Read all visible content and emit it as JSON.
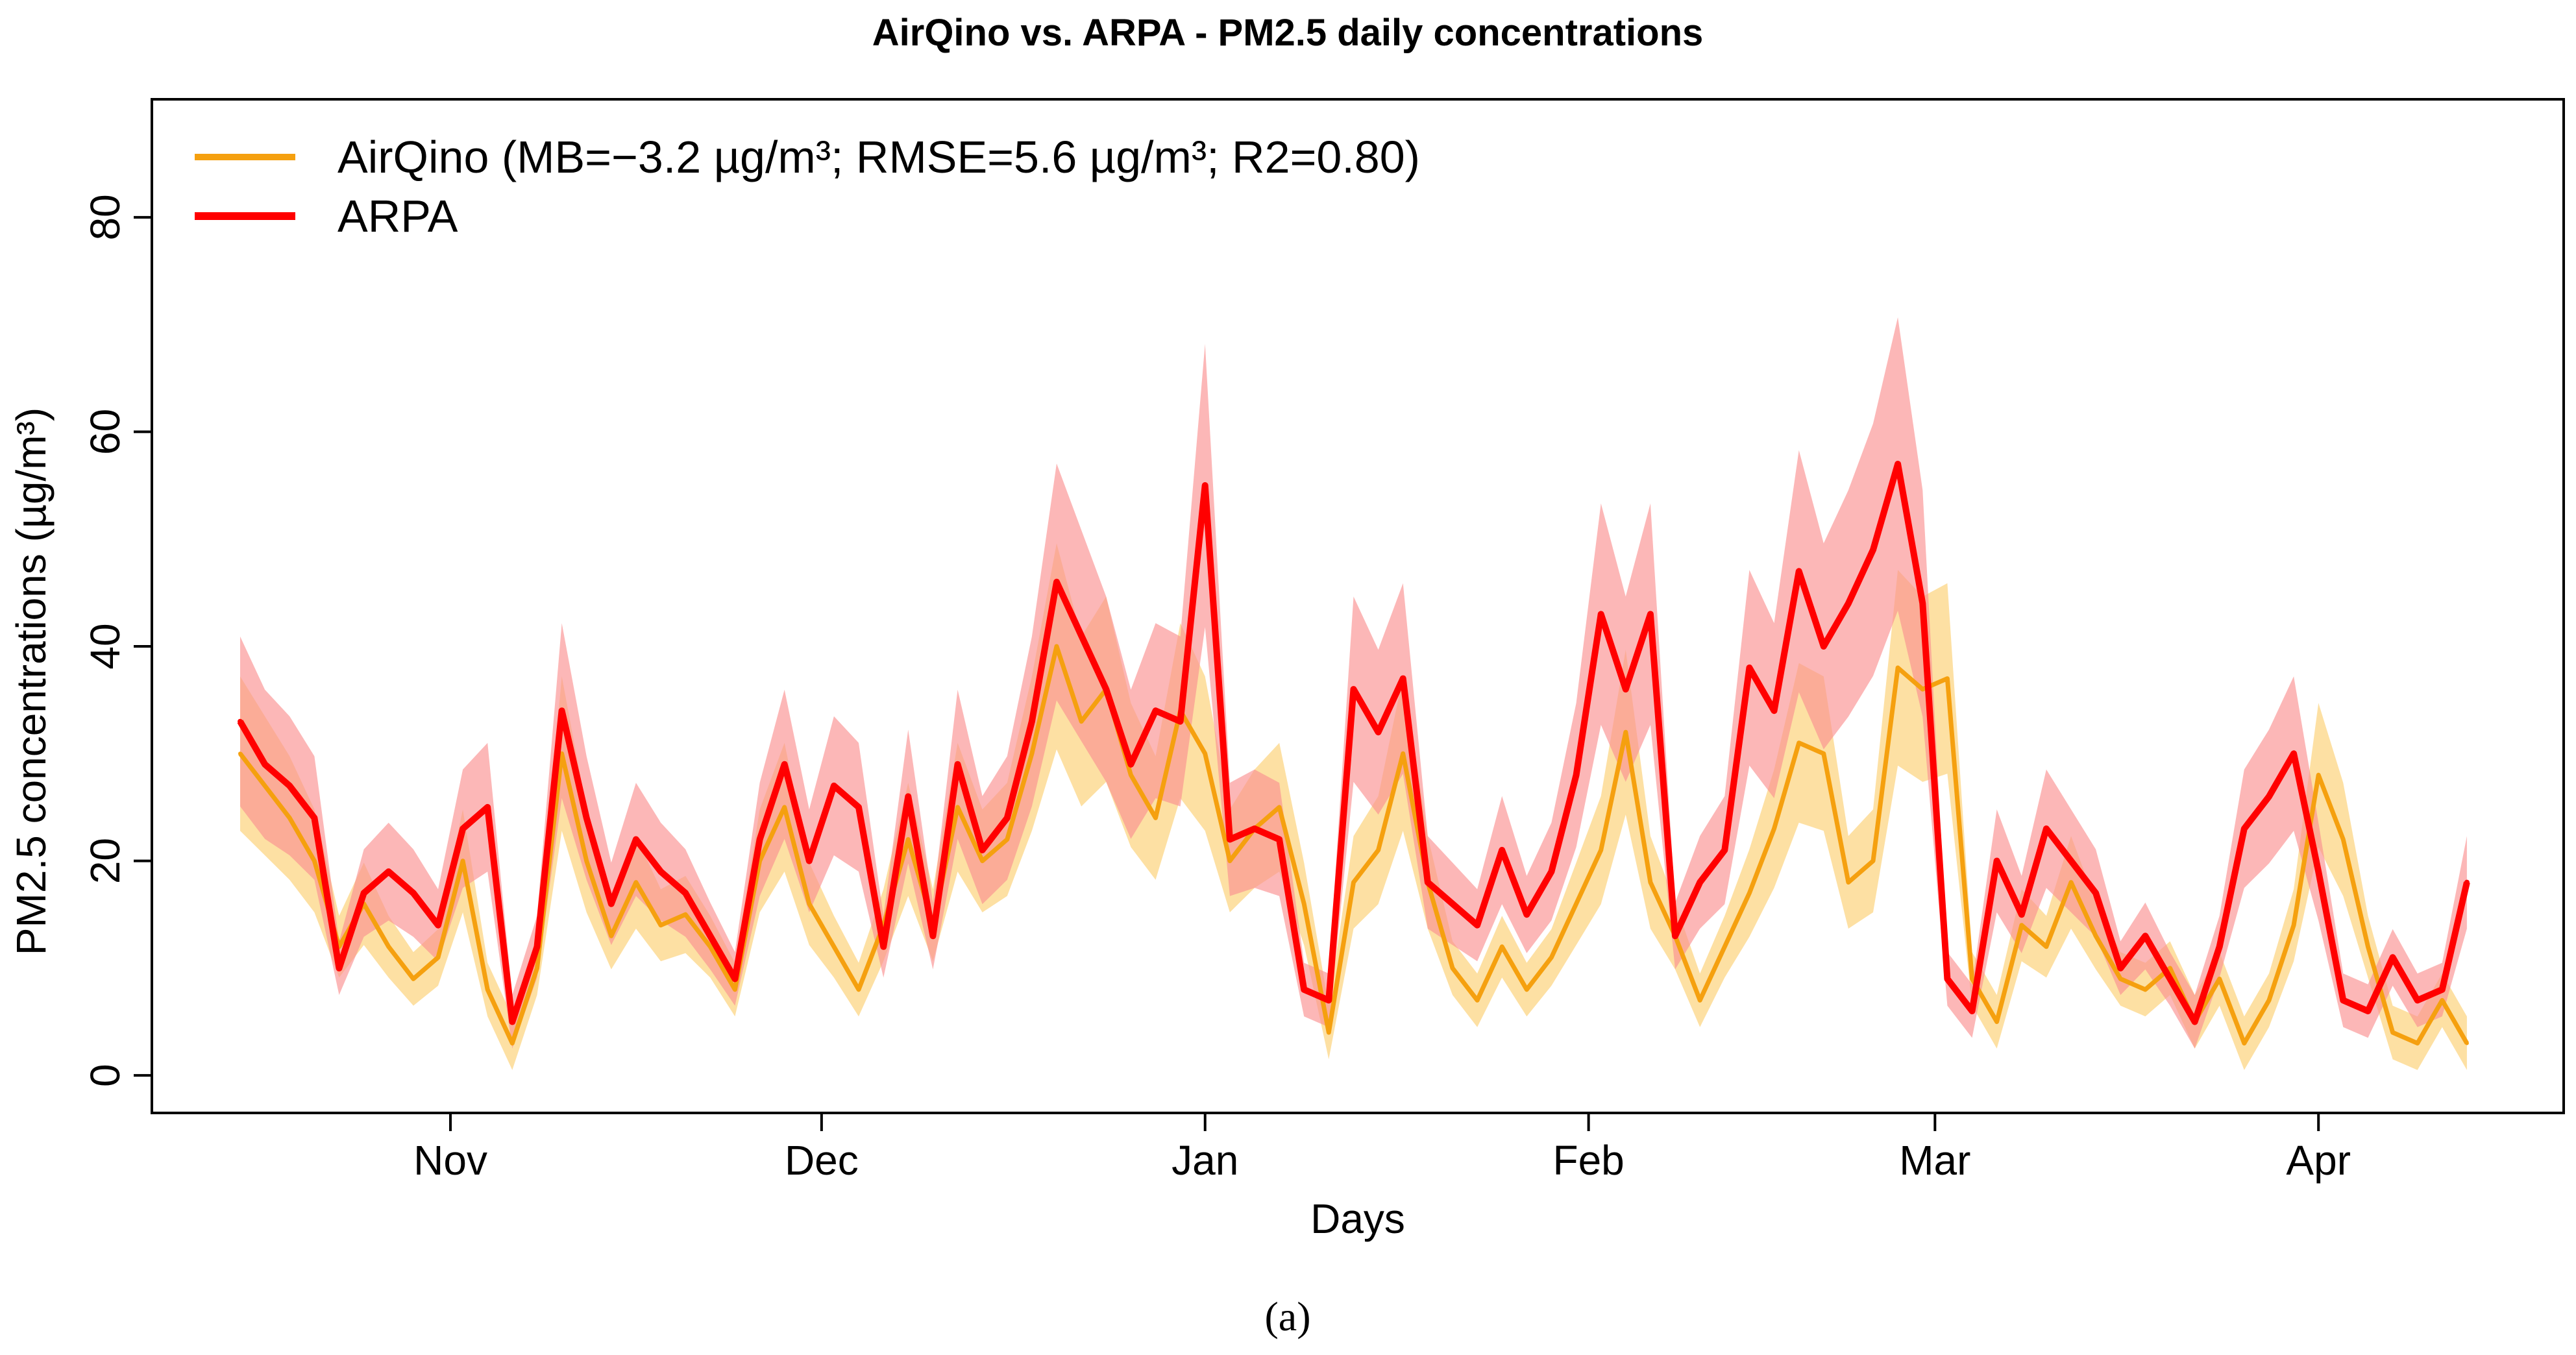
{
  "chart_data": {
    "type": "line",
    "title": "AirQino vs. ARPA - PM2.5 daily concentrations",
    "xlabel": "Days",
    "ylabel": "PM2.5 concentrations (µg/m³)",
    "ylim": [
      -3.5,
      91
    ],
    "yticks": [
      0,
      20,
      40,
      60,
      80
    ],
    "xlim": [
      0,
      181
    ],
    "x_ticks": [
      {
        "label": "Nov",
        "day": 17
      },
      {
        "label": "Dec",
        "day": 47
      },
      {
        "label": "Jan",
        "day": 78
      },
      {
        "label": "Feb",
        "day": 109
      },
      {
        "label": "Mar",
        "day": 137
      },
      {
        "label": "Apr",
        "day": 168
      }
    ],
    "legend_position": "top-left",
    "series": [
      {
        "name": "AirQino",
        "legend_label": "AirQino (MB=−3.2 µg/m³; RMSE=5.6 µg/m³; R2=0.80)",
        "color": "#F5A00F",
        "band_color": "#FDD88C",
        "x": [
          0,
          2,
          4,
          6,
          8,
          10,
          12,
          14,
          16,
          18,
          20,
          22,
          24,
          26,
          28,
          30,
          32,
          34,
          36,
          38,
          40,
          42,
          44,
          46,
          48,
          50,
          52,
          54,
          56,
          58,
          60,
          62,
          64,
          66,
          68,
          70,
          72,
          74,
          76,
          78,
          80,
          82,
          84,
          86,
          88,
          90,
          92,
          94,
          96,
          98,
          100,
          102,
          104,
          106,
          108,
          110,
          112,
          114,
          116,
          118,
          120,
          122,
          124,
          126,
          128,
          130,
          132,
          134,
          136,
          138,
          140,
          142,
          144,
          146,
          148,
          150,
          152,
          154,
          156,
          158,
          160,
          162,
          164,
          166,
          168,
          170,
          172,
          174,
          176,
          178,
          180
        ],
        "values": [
          30,
          27,
          24,
          20,
          12,
          16,
          12,
          9,
          11,
          20,
          8,
          3,
          10,
          30,
          20,
          13,
          18,
          14,
          15,
          12,
          8,
          20,
          25,
          16,
          12,
          8,
          14,
          22,
          14,
          25,
          20,
          22,
          30,
          40,
          33,
          36,
          28,
          24,
          34,
          30,
          20,
          23,
          25,
          16,
          4,
          18,
          21,
          30,
          18,
          10,
          7,
          12,
          8,
          11,
          16,
          21,
          32,
          18,
          13,
          7,
          12,
          17,
          23,
          31,
          30,
          18,
          20,
          38,
          36,
          37,
          9,
          5,
          14,
          12,
          18,
          13,
          9,
          8,
          10,
          5,
          9,
          3,
          7,
          14,
          28,
          22,
          12,
          4,
          3,
          7,
          3
        ]
      },
      {
        "name": "ARPA",
        "legend_label": "ARPA",
        "color": "#FF0000",
        "band_color": "#FA9090",
        "x": [
          0,
          2,
          4,
          6,
          8,
          10,
          12,
          14,
          16,
          18,
          20,
          22,
          24,
          26,
          28,
          30,
          32,
          34,
          36,
          38,
          40,
          42,
          44,
          46,
          48,
          50,
          52,
          54,
          56,
          58,
          60,
          62,
          64,
          66,
          68,
          70,
          72,
          74,
          76,
          78,
          80,
          82,
          84,
          86,
          88,
          90,
          92,
          94,
          96,
          98,
          100,
          102,
          104,
          106,
          108,
          110,
          112,
          114,
          116,
          118,
          120,
          122,
          124,
          126,
          128,
          130,
          132,
          134,
          136,
          138,
          140,
          142,
          144,
          146,
          148,
          150,
          152,
          154,
          156,
          158,
          160,
          162,
          164,
          166,
          168,
          170,
          172,
          174,
          176,
          178,
          180
        ],
        "values": [
          33,
          29,
          27,
          24,
          10,
          17,
          19,
          17,
          14,
          23,
          25,
          5,
          12,
          34,
          24,
          16,
          22,
          19,
          17,
          13,
          9,
          22,
          29,
          20,
          27,
          25,
          12,
          26,
          13,
          29,
          21,
          24,
          33,
          46,
          41,
          36,
          29,
          34,
          33,
          55,
          22,
          23,
          22,
          8,
          7,
          36,
          32,
          37,
          18,
          16,
          14,
          21,
          15,
          19,
          28,
          43,
          36,
          43,
          13,
          18,
          21,
          38,
          34,
          47,
          40,
          44,
          49,
          57,
          44,
          9,
          6,
          20,
          15,
          23,
          20,
          17,
          10,
          13,
          9,
          5,
          12,
          23,
          26,
          30,
          19,
          7,
          6,
          11,
          7,
          8,
          18
        ]
      }
    ]
  },
  "caption": "(a)"
}
